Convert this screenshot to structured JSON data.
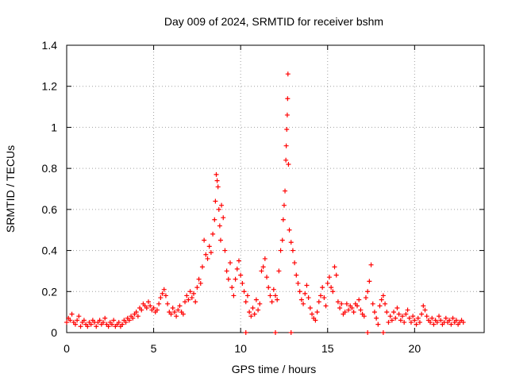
{
  "chart_data": {
    "type": "scatter",
    "title": "Day 009 of 2024, SRMTID for receiver bshm",
    "xlabel": "GPS time / hours",
    "ylabel": "SRMTID / TECUs",
    "xlim": [
      0,
      24
    ],
    "ylim": [
      0,
      1.4
    ],
    "xticks": [
      0,
      5,
      10,
      15,
      20
    ],
    "yticks": [
      0,
      0.2,
      0.4,
      0.6,
      0.8,
      1,
      1.2,
      1.4
    ],
    "xtick_labels": [
      "0",
      "5",
      "10",
      "15",
      "20"
    ],
    "ytick_labels": [
      "0",
      "0.2",
      "0.4",
      "0.6",
      "0.8",
      "1",
      "1.2",
      "1.4"
    ],
    "grid": true,
    "marker": "+",
    "color": "#ff0000",
    "series": [
      {
        "name": "SRMTID",
        "points": [
          [
            0.0,
            0.05
          ],
          [
            0.1,
            0.07
          ],
          [
            0.2,
            0.06
          ],
          [
            0.3,
            0.09
          ],
          [
            0.4,
            0.05
          ],
          [
            0.5,
            0.04
          ],
          [
            0.6,
            0.06
          ],
          [
            0.7,
            0.08
          ],
          [
            0.8,
            0.03
          ],
          [
            0.9,
            0.05
          ],
          [
            1.0,
            0.06
          ],
          [
            1.1,
            0.04
          ],
          [
            1.2,
            0.03
          ],
          [
            1.3,
            0.05
          ],
          [
            1.4,
            0.04
          ],
          [
            1.5,
            0.06
          ],
          [
            1.6,
            0.05
          ],
          [
            1.7,
            0.03
          ],
          [
            1.8,
            0.05
          ],
          [
            1.9,
            0.06
          ],
          [
            2.0,
            0.04
          ],
          [
            2.1,
            0.05
          ],
          [
            2.2,
            0.07
          ],
          [
            2.3,
            0.04
          ],
          [
            2.4,
            0.03
          ],
          [
            2.5,
            0.05
          ],
          [
            2.6,
            0.04
          ],
          [
            2.7,
            0.06
          ],
          [
            2.8,
            0.03
          ],
          [
            2.9,
            0.04
          ],
          [
            3.0,
            0.05
          ],
          [
            3.1,
            0.03
          ],
          [
            3.2,
            0.04
          ],
          [
            3.3,
            0.06
          ],
          [
            3.4,
            0.05
          ],
          [
            3.5,
            0.07
          ],
          [
            3.6,
            0.06
          ],
          [
            3.7,
            0.08
          ],
          [
            3.8,
            0.07
          ],
          [
            3.9,
            0.09
          ],
          [
            4.0,
            0.1
          ],
          [
            4.1,
            0.08
          ],
          [
            4.2,
            0.12
          ],
          [
            4.3,
            0.11
          ],
          [
            4.4,
            0.14
          ],
          [
            4.5,
            0.13
          ],
          [
            4.6,
            0.12
          ],
          [
            4.7,
            0.15
          ],
          [
            4.8,
            0.13
          ],
          [
            4.9,
            0.11
          ],
          [
            5.0,
            0.12
          ],
          [
            5.1,
            0.1
          ],
          [
            5.2,
            0.11
          ],
          [
            5.3,
            0.14
          ],
          [
            5.4,
            0.17
          ],
          [
            5.5,
            0.19
          ],
          [
            5.6,
            0.21
          ],
          [
            5.7,
            0.18
          ],
          [
            5.8,
            0.14
          ],
          [
            5.9,
            0.1
          ],
          [
            6.0,
            0.09
          ],
          [
            6.1,
            0.12
          ],
          [
            6.2,
            0.1
          ],
          [
            6.3,
            0.08
          ],
          [
            6.4,
            0.11
          ],
          [
            6.5,
            0.13
          ],
          [
            6.6,
            0.1
          ],
          [
            6.7,
            0.09
          ],
          [
            6.8,
            0.15
          ],
          [
            6.9,
            0.18
          ],
          [
            7.0,
            0.16
          ],
          [
            7.1,
            0.2
          ],
          [
            7.2,
            0.17
          ],
          [
            7.3,
            0.19
          ],
          [
            7.4,
            0.15
          ],
          [
            7.5,
            0.22
          ],
          [
            7.6,
            0.26
          ],
          [
            7.7,
            0.24
          ],
          [
            7.8,
            0.32
          ],
          [
            7.9,
            0.45
          ],
          [
            8.0,
            0.38
          ],
          [
            8.1,
            0.36
          ],
          [
            8.2,
            0.42
          ],
          [
            8.3,
            0.39
          ],
          [
            8.4,
            0.48
          ],
          [
            8.5,
            0.55
          ],
          [
            8.55,
            0.64
          ],
          [
            8.6,
            0.77
          ],
          [
            8.65,
            0.74
          ],
          [
            8.7,
            0.71
          ],
          [
            8.75,
            0.6
          ],
          [
            8.8,
            0.52
          ],
          [
            8.85,
            0.45
          ],
          [
            8.9,
            0.62
          ],
          [
            9.0,
            0.56
          ],
          [
            9.1,
            0.4
          ],
          [
            9.2,
            0.3
          ],
          [
            9.3,
            0.26
          ],
          [
            9.4,
            0.34
          ],
          [
            9.5,
            0.22
          ],
          [
            9.6,
            0.18
          ],
          [
            9.7,
            0.26
          ],
          [
            9.8,
            0.31
          ],
          [
            9.9,
            0.35
          ],
          [
            10.0,
            0.28
          ],
          [
            10.1,
            0.24
          ],
          [
            10.2,
            0.2
          ],
          [
            10.3,
            0.15
          ],
          [
            10.4,
            0.18
          ],
          [
            10.5,
            0.1
          ],
          [
            10.6,
            0.08
          ],
          [
            10.7,
            0.12
          ],
          [
            10.8,
            0.09
          ],
          [
            10.9,
            0.16
          ],
          [
            11.0,
            0.11
          ],
          [
            11.1,
            0.14
          ],
          [
            11.2,
            0.3
          ],
          [
            11.3,
            0.32
          ],
          [
            11.4,
            0.36
          ],
          [
            11.5,
            0.27
          ],
          [
            11.6,
            0.22
          ],
          [
            11.7,
            0.18
          ],
          [
            11.8,
            0.15
          ],
          [
            11.9,
            0.21
          ],
          [
            12.0,
            0.18
          ],
          [
            12.1,
            0.16
          ],
          [
            12.2,
            0.3
          ],
          [
            12.3,
            0.4
          ],
          [
            12.4,
            0.45
          ],
          [
            12.45,
            0.55
          ],
          [
            12.5,
            0.62
          ],
          [
            12.55,
            0.69
          ],
          [
            12.6,
            0.84
          ],
          [
            12.62,
            0.91
          ],
          [
            12.65,
            0.99
          ],
          [
            12.68,
            1.06
          ],
          [
            12.7,
            1.14
          ],
          [
            12.72,
            1.26
          ],
          [
            12.75,
            0.82
          ],
          [
            12.8,
            0.5
          ],
          [
            12.9,
            0.44
          ],
          [
            13.0,
            0.4
          ],
          [
            13.1,
            0.34
          ],
          [
            13.2,
            0.28
          ],
          [
            13.3,
            0.24
          ],
          [
            13.4,
            0.2
          ],
          [
            13.5,
            0.16
          ],
          [
            13.6,
            0.14
          ],
          [
            13.7,
            0.19
          ],
          [
            13.8,
            0.23
          ],
          [
            13.9,
            0.17
          ],
          [
            14.0,
            0.12
          ],
          [
            14.1,
            0.09
          ],
          [
            14.2,
            0.07
          ],
          [
            14.3,
            0.06
          ],
          [
            14.4,
            0.1
          ],
          [
            14.5,
            0.15
          ],
          [
            14.6,
            0.18
          ],
          [
            14.7,
            0.22
          ],
          [
            14.8,
            0.17
          ],
          [
            14.9,
            0.13
          ],
          [
            15.0,
            0.24
          ],
          [
            15.1,
            0.27
          ],
          [
            15.2,
            0.22
          ],
          [
            15.3,
            0.2
          ],
          [
            15.4,
            0.32
          ],
          [
            15.5,
            0.28
          ],
          [
            15.6,
            0.15
          ],
          [
            15.7,
            0.12
          ],
          [
            15.8,
            0.14
          ],
          [
            15.9,
            0.09
          ],
          [
            16.0,
            0.1
          ],
          [
            16.1,
            0.14
          ],
          [
            16.2,
            0.11
          ],
          [
            16.3,
            0.13
          ],
          [
            16.4,
            0.12
          ],
          [
            16.5,
            0.1
          ],
          [
            16.6,
            0.14
          ],
          [
            16.7,
            0.13
          ],
          [
            16.8,
            0.16
          ],
          [
            16.9,
            0.11
          ],
          [
            17.0,
            0.09
          ],
          [
            17.1,
            0.08
          ],
          [
            17.2,
            0.17
          ],
          [
            17.3,
            0.2
          ],
          [
            17.4,
            0.25
          ],
          [
            17.5,
            0.33
          ],
          [
            17.6,
            0.14
          ],
          [
            17.7,
            0.1
          ],
          [
            17.8,
            0.07
          ],
          [
            17.9,
            0.04
          ],
          [
            18.0,
            0.13
          ],
          [
            18.1,
            0.16
          ],
          [
            18.2,
            0.18
          ],
          [
            18.3,
            0.14
          ],
          [
            18.4,
            0.1
          ],
          [
            18.5,
            0.05
          ],
          [
            18.6,
            0.08
          ],
          [
            18.7,
            0.06
          ],
          [
            18.8,
            0.1
          ],
          [
            18.9,
            0.07
          ],
          [
            19.0,
            0.12
          ],
          [
            19.1,
            0.09
          ],
          [
            19.2,
            0.06
          ],
          [
            19.3,
            0.08
          ],
          [
            19.4,
            0.05
          ],
          [
            19.5,
            0.09
          ],
          [
            19.6,
            0.11
          ],
          [
            19.7,
            0.07
          ],
          [
            19.8,
            0.05
          ],
          [
            19.9,
            0.08
          ],
          [
            20.0,
            0.06
          ],
          [
            20.1,
            0.04
          ],
          [
            20.2,
            0.07
          ],
          [
            20.3,
            0.05
          ],
          [
            20.4,
            0.09
          ],
          [
            20.5,
            0.13
          ],
          [
            20.6,
            0.11
          ],
          [
            20.7,
            0.08
          ],
          [
            20.8,
            0.06
          ],
          [
            20.9,
            0.05
          ],
          [
            21.0,
            0.07
          ],
          [
            21.1,
            0.04
          ],
          [
            21.2,
            0.06
          ],
          [
            21.3,
            0.05
          ],
          [
            21.4,
            0.08
          ],
          [
            21.5,
            0.06
          ],
          [
            21.6,
            0.04
          ],
          [
            21.7,
            0.05
          ],
          [
            21.8,
            0.07
          ],
          [
            21.9,
            0.05
          ],
          [
            22.0,
            0.06
          ],
          [
            22.1,
            0.04
          ],
          [
            22.2,
            0.07
          ],
          [
            22.3,
            0.05
          ],
          [
            22.4,
            0.06
          ],
          [
            22.5,
            0.04
          ],
          [
            22.6,
            0.05
          ],
          [
            22.7,
            0.06
          ],
          [
            22.8,
            0.05
          ],
          [
            10.3,
            0.0
          ],
          [
            12.0,
            0.0
          ],
          [
            12.9,
            0.0
          ],
          [
            17.3,
            0.0
          ],
          [
            18.2,
            0.0
          ]
        ]
      }
    ]
  }
}
